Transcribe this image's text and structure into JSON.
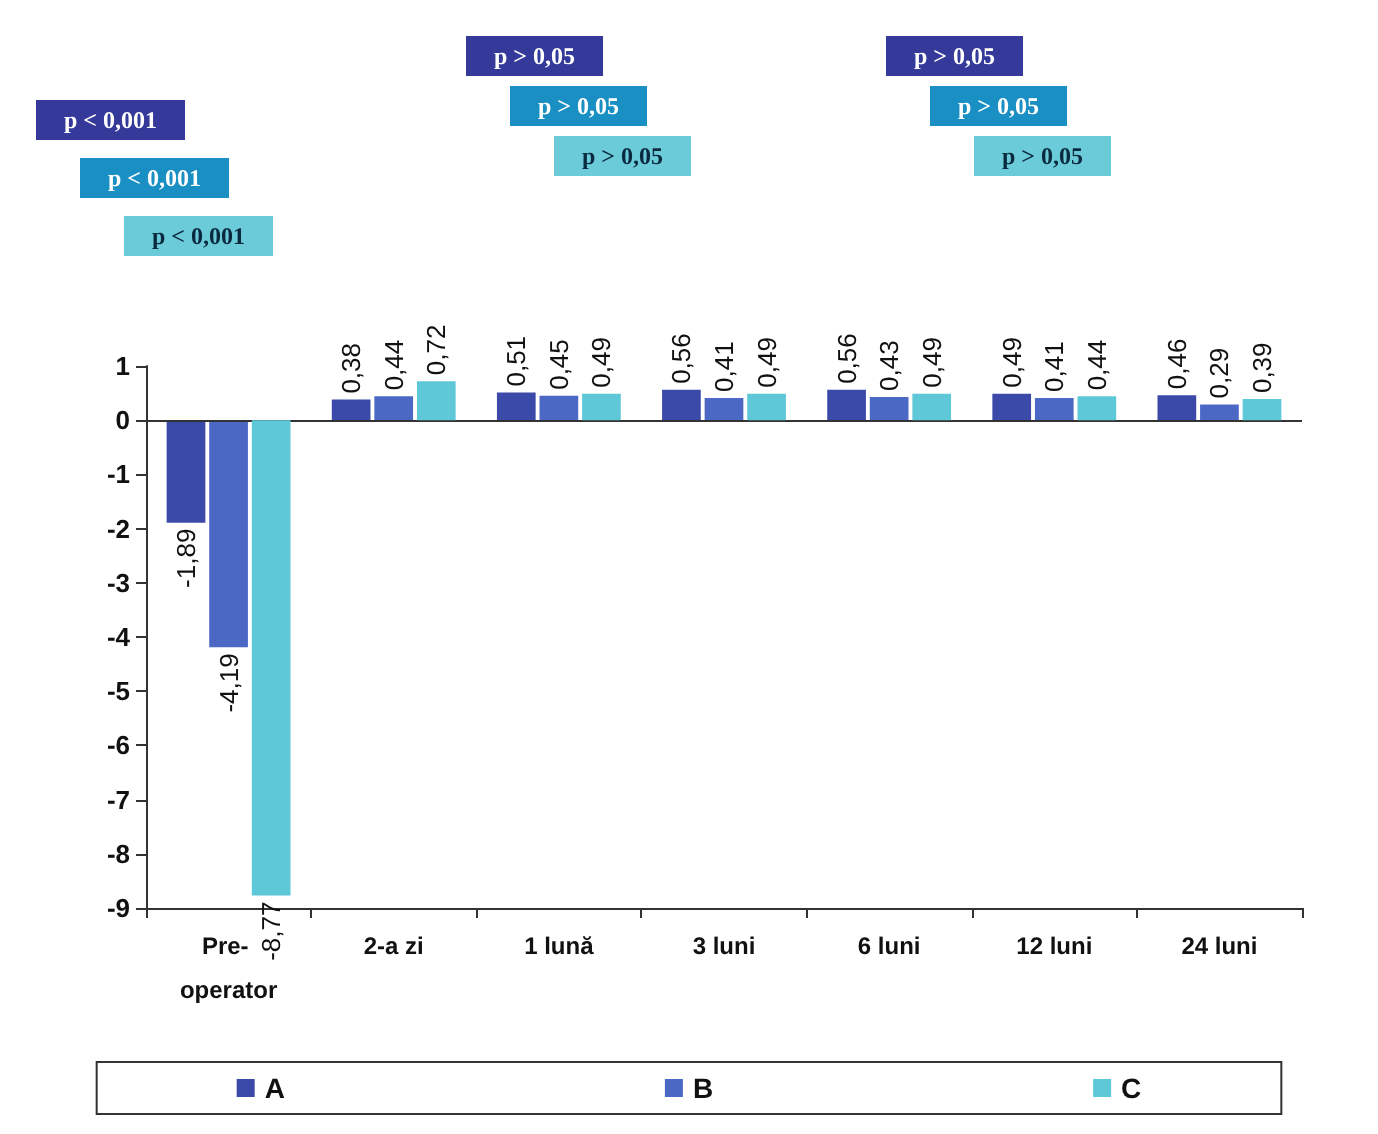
{
  "chart_data": {
    "type": "bar",
    "categories": [
      "Pre- operator",
      "2-a zi",
      "1 lună",
      "3 luni",
      "6 luni",
      "12 luni",
      "24 luni"
    ],
    "series": [
      {
        "name": "A",
        "color": "#3b4aa8",
        "values": [
          -1.89,
          0.38,
          0.51,
          0.56,
          0.56,
          0.49,
          0.46
        ],
        "value_labels": [
          "-1,89",
          "0,38",
          "0,51",
          "0,56",
          "0,56",
          "0,49",
          "0,46"
        ]
      },
      {
        "name": "B",
        "color": "#4a68c4",
        "values": [
          -4.19,
          0.44,
          0.45,
          0.41,
          0.43,
          0.41,
          0.29
        ],
        "value_labels": [
          "-4,19",
          "0,44",
          "0,45",
          "0,41",
          "0,43",
          "0,41",
          "0,29"
        ]
      },
      {
        "name": "C",
        "color": "#5fc8d8",
        "values": [
          -8.77,
          0.72,
          0.49,
          0.49,
          0.49,
          0.44,
          0.39
        ],
        "value_labels": [
          "-8,77",
          "0,72",
          "0,49",
          "0,49",
          "0,49",
          "0,44",
          "0,39"
        ]
      }
    ],
    "ylim": [
      -9,
      1
    ],
    "yticks": [
      -9,
      -8,
      -7,
      -6,
      -5,
      -4,
      -3,
      -2,
      -1,
      0,
      1
    ],
    "grid": false,
    "legend": "bottom",
    "ref_lines": [
      {
        "axis": "y",
        "value": 0
      }
    ],
    "annotations": [
      "p < 0,001",
      "p < 0,001",
      "p < 0,001",
      "p > 0,05",
      "p > 0,05",
      "p > 0,05",
      "p > 0,05",
      "p > 0,05",
      "p > 0,05"
    ]
  }
}
